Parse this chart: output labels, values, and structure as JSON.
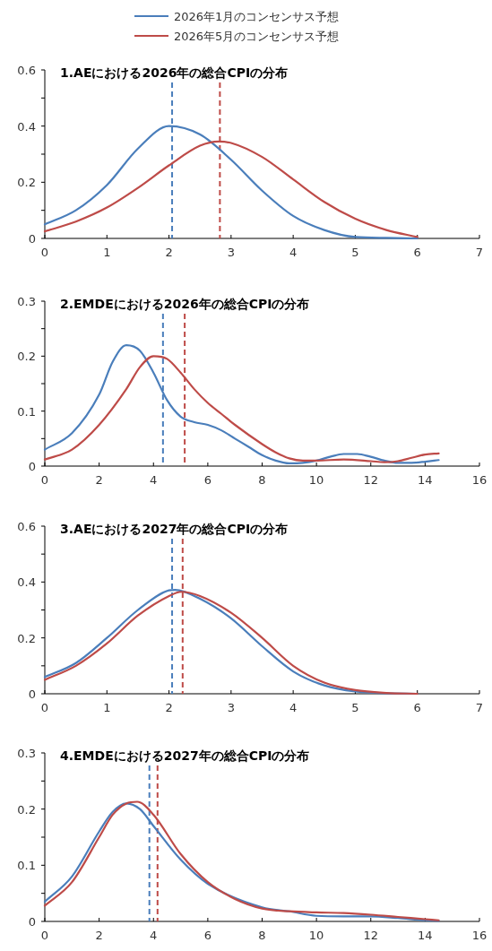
{
  "chart_data": [
    {
      "type": "line",
      "title": "1.AEにおける2026年の総合CPIの分布",
      "legend": "top",
      "xlim": [
        0,
        7
      ],
      "xticks": [
        0,
        1,
        2,
        3,
        4,
        5,
        6,
        7
      ],
      "ylim": [
        0,
        0.6
      ],
      "yticks": [
        0,
        {
          "value": 0.1,
          "label": null
        },
        0.2,
        {
          "value": 0.3,
          "label": null
        },
        0.4,
        {
          "value": 0.5,
          "label": null
        },
        0.6
      ],
      "series": [
        {
          "name": "2026年1月のコンセンサス予想",
          "color": "#4a7ebb",
          "x": [
            0,
            0.5,
            1,
            1.5,
            2,
            2.5,
            3,
            3.5,
            4,
            4.5,
            5,
            5.5,
            6
          ],
          "values": [
            0.05,
            0.1,
            0.19,
            0.32,
            0.4,
            0.37,
            0.28,
            0.17,
            0.08,
            0.03,
            0.005,
            0.002,
            0
          ]
        },
        {
          "name": "2026年5月のコンセンサス予想",
          "color": "#be4b48",
          "x": [
            0,
            0.5,
            1,
            1.5,
            2,
            2.5,
            2.8,
            3,
            3.5,
            4,
            4.5,
            5,
            5.5,
            6
          ],
          "values": [
            0.025,
            0.06,
            0.11,
            0.18,
            0.26,
            0.33,
            0.345,
            0.34,
            0.29,
            0.21,
            0.13,
            0.07,
            0.03,
            0.005
          ]
        }
      ],
      "ref_lines": [
        {
          "axis": "x",
          "value": 2.05,
          "color": "#4a7ebb",
          "line_style": "dashed"
        },
        {
          "axis": "x",
          "value": 2.82,
          "color": "#be4b48",
          "line_style": "dashed"
        }
      ]
    },
    {
      "type": "line",
      "title": "2.EMDEにおける2026年の総合CPIの分布",
      "xlim": [
        0,
        16
      ],
      "xticks": [
        0,
        2,
        4,
        6,
        8,
        10,
        12,
        14,
        16
      ],
      "ylim": [
        0,
        0.3
      ],
      "yticks": [
        0,
        {
          "value": 0.05,
          "label": null
        },
        0.1,
        {
          "value": 0.15,
          "label": null
        },
        0.2,
        {
          "value": 0.25,
          "label": null
        },
        0.3
      ],
      "series": [
        {
          "color": "#4a7ebb",
          "x": [
            0,
            1,
            2,
            2.5,
            3,
            3.5,
            4,
            4.5,
            5,
            5.5,
            6,
            6.5,
            7,
            7.5,
            8,
            8.5,
            9,
            9.5,
            10,
            10.5,
            11,
            11.5,
            12,
            12.5,
            13,
            13.5,
            14,
            14.5
          ],
          "values": [
            0.03,
            0.06,
            0.13,
            0.19,
            0.22,
            0.21,
            0.17,
            0.12,
            0.09,
            0.08,
            0.075,
            0.065,
            0.05,
            0.035,
            0.02,
            0.01,
            0.005,
            0.006,
            0.01,
            0.017,
            0.022,
            0.022,
            0.017,
            0.01,
            0.006,
            0.006,
            0.008,
            0.011
          ]
        },
        {
          "color": "#be4b48",
          "x": [
            0,
            1,
            2,
            3,
            3.5,
            4,
            4.5,
            5,
            5.5,
            6,
            6.5,
            7,
            8,
            8.5,
            9,
            9.5,
            10,
            11,
            12,
            12.5,
            13,
            13.5,
            14,
            14.5
          ],
          "values": [
            0.012,
            0.03,
            0.075,
            0.14,
            0.18,
            0.2,
            0.195,
            0.17,
            0.14,
            0.115,
            0.095,
            0.075,
            0.04,
            0.025,
            0.014,
            0.01,
            0.01,
            0.012,
            0.009,
            0.007,
            0.009,
            0.015,
            0.021,
            0.023
          ]
        }
      ],
      "ref_lines": [
        {
          "axis": "x",
          "value": 4.35,
          "color": "#4a7ebb",
          "line_style": "dashed"
        },
        {
          "axis": "x",
          "value": 5.15,
          "color": "#be4b48",
          "line_style": "dashed"
        }
      ]
    },
    {
      "type": "line",
      "title": "3.AEにおける2027年の総合CPIの分布",
      "xlim": [
        0,
        7
      ],
      "xticks": [
        0,
        1,
        2,
        3,
        4,
        5,
        6,
        7
      ],
      "ylim": [
        0,
        0.6
      ],
      "yticks": [
        0,
        {
          "value": 0.1,
          "label": null
        },
        0.2,
        {
          "value": 0.3,
          "label": null
        },
        0.4,
        {
          "value": 0.5,
          "label": null
        },
        0.6
      ],
      "series": [
        {
          "color": "#4a7ebb",
          "x": [
            0,
            0.5,
            1,
            1.5,
            2,
            2.1,
            2.5,
            3,
            3.5,
            4,
            4.5,
            5,
            5.5,
            6
          ],
          "values": [
            0.06,
            0.11,
            0.2,
            0.3,
            0.37,
            0.372,
            0.34,
            0.27,
            0.17,
            0.08,
            0.03,
            0.008,
            0.002,
            0
          ]
        },
        {
          "color": "#be4b48",
          "x": [
            0,
            0.5,
            1,
            1.5,
            2,
            2.2,
            2.5,
            3,
            3.5,
            4,
            4.5,
            5,
            5.5,
            6
          ],
          "values": [
            0.05,
            0.1,
            0.18,
            0.28,
            0.35,
            0.365,
            0.35,
            0.29,
            0.2,
            0.1,
            0.04,
            0.013,
            0.003,
            0
          ]
        }
      ],
      "ref_lines": [
        {
          "axis": "x",
          "value": 2.05,
          "color": "#4a7ebb",
          "line_style": "dashed"
        },
        {
          "axis": "x",
          "value": 2.22,
          "color": "#be4b48",
          "line_style": "dashed"
        }
      ]
    },
    {
      "type": "line",
      "title": "4.EMDEにおける2027年の総合CPIの分布",
      "xlim": [
        0,
        16
      ],
      "xticks": [
        0,
        2,
        4,
        6,
        8,
        10,
        12,
        14,
        16
      ],
      "ylim": [
        0,
        0.3
      ],
      "yticks": [
        0,
        {
          "value": 0.05,
          "label": null
        },
        0.1,
        {
          "value": 0.15,
          "label": null
        },
        0.2,
        {
          "value": 0.25,
          "label": null
        },
        0.3
      ],
      "series": [
        {
          "color": "#4a7ebb",
          "x": [
            0,
            1,
            2,
            2.5,
            3,
            3.5,
            4,
            5,
            6,
            8,
            9,
            10,
            11,
            12,
            13,
            14,
            14.5
          ],
          "values": [
            0.035,
            0.08,
            0.16,
            0.195,
            0.21,
            0.2,
            0.17,
            0.11,
            0.067,
            0.025,
            0.018,
            0.01,
            0.009,
            0.009,
            0.006,
            0.002,
            0.001
          ]
        },
        {
          "color": "#be4b48",
          "x": [
            0,
            1,
            2,
            2.5,
            3,
            3.4,
            4,
            5,
            6,
            7,
            8,
            9,
            10,
            11,
            12,
            13,
            14,
            14.5
          ],
          "values": [
            0.028,
            0.07,
            0.15,
            0.19,
            0.21,
            0.213,
            0.19,
            0.12,
            0.07,
            0.04,
            0.023,
            0.018,
            0.016,
            0.015,
            0.012,
            0.008,
            0.004,
            0.002
          ]
        }
      ],
      "ref_lines": [
        {
          "axis": "x",
          "value": 3.85,
          "color": "#4a7ebb",
          "line_style": "dashed"
        },
        {
          "axis": "x",
          "value": 4.15,
          "color": "#be4b48",
          "line_style": "dashed"
        }
      ]
    }
  ]
}
